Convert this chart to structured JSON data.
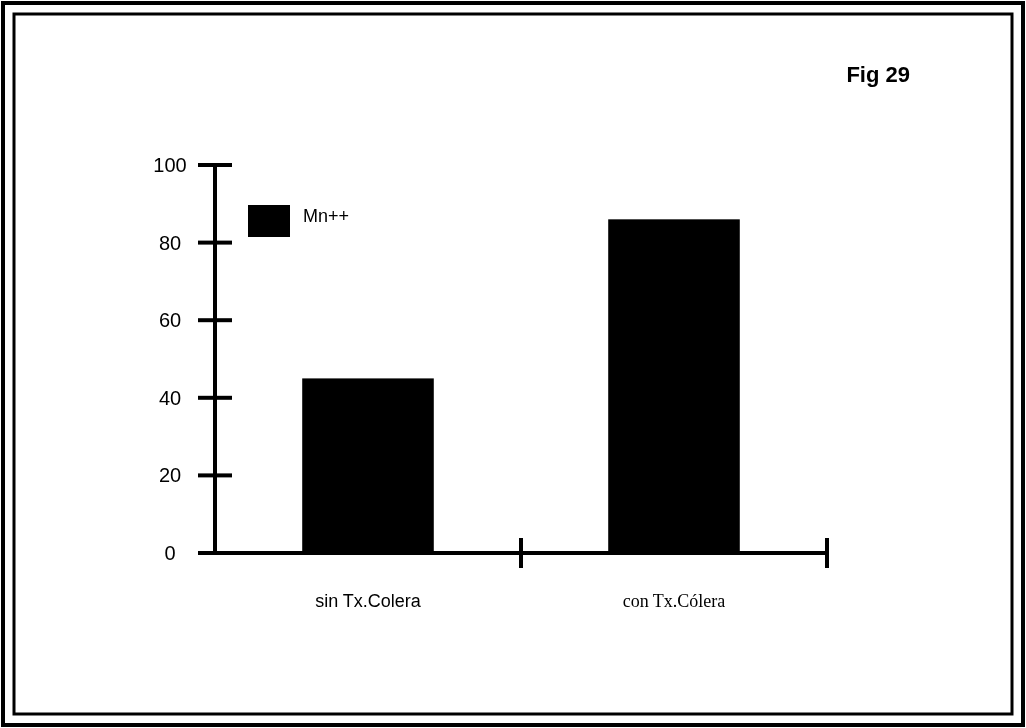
{
  "chart_data": {
    "type": "bar",
    "title": "Fig 29",
    "categories": [
      "sin Tx.Colera",
      "con Tx.Cólera"
    ],
    "series": [
      {
        "name": "Mn++",
        "color": "#000000",
        "values": [
          45,
          86
        ]
      }
    ],
    "ylim": [
      0,
      100
    ],
    "yticks": [
      0,
      20,
      40,
      60,
      80,
      100
    ],
    "legend": "top left",
    "grid": false
  }
}
